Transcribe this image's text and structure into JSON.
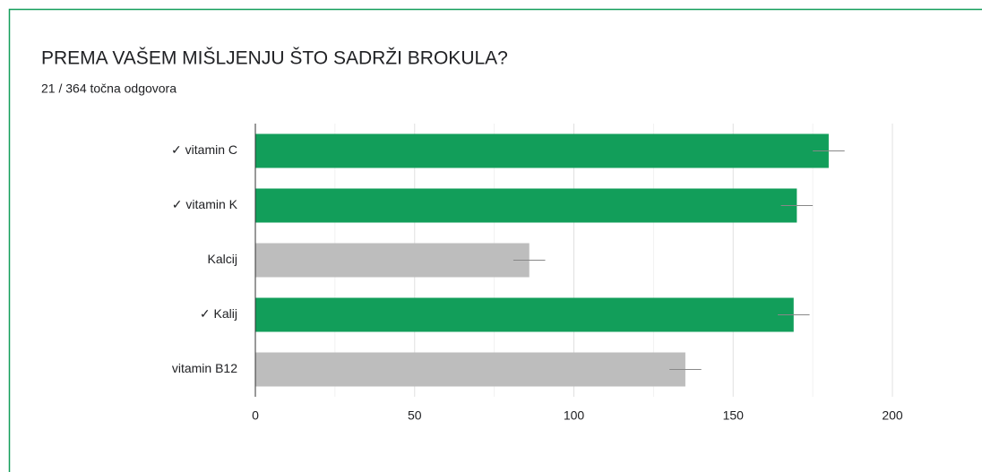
{
  "chart_data": {
    "type": "hbar",
    "title": "PREMA VAŠEM MIŠLJENJU ŠTO SADRŽI BROKULA?",
    "subtitle": "21 / 364 točna odgovora",
    "categories": [
      "✓ vitamin C",
      "✓ vitamin K",
      "Kalcij",
      "✓ Kalij",
      "vitamin B12"
    ],
    "values": [
      180,
      170,
      86,
      169,
      135
    ],
    "errors": [
      5,
      5,
      5,
      5,
      5
    ],
    "colors": [
      "#129e5a",
      "#129e5a",
      "#bdbdbd",
      "#129e5a",
      "#bdbdbd"
    ],
    "xlim": [
      0,
      200
    ],
    "xticks": [
      0,
      50,
      100,
      150,
      200
    ],
    "xminor": [
      25,
      75,
      125,
      175
    ],
    "grid": true
  }
}
